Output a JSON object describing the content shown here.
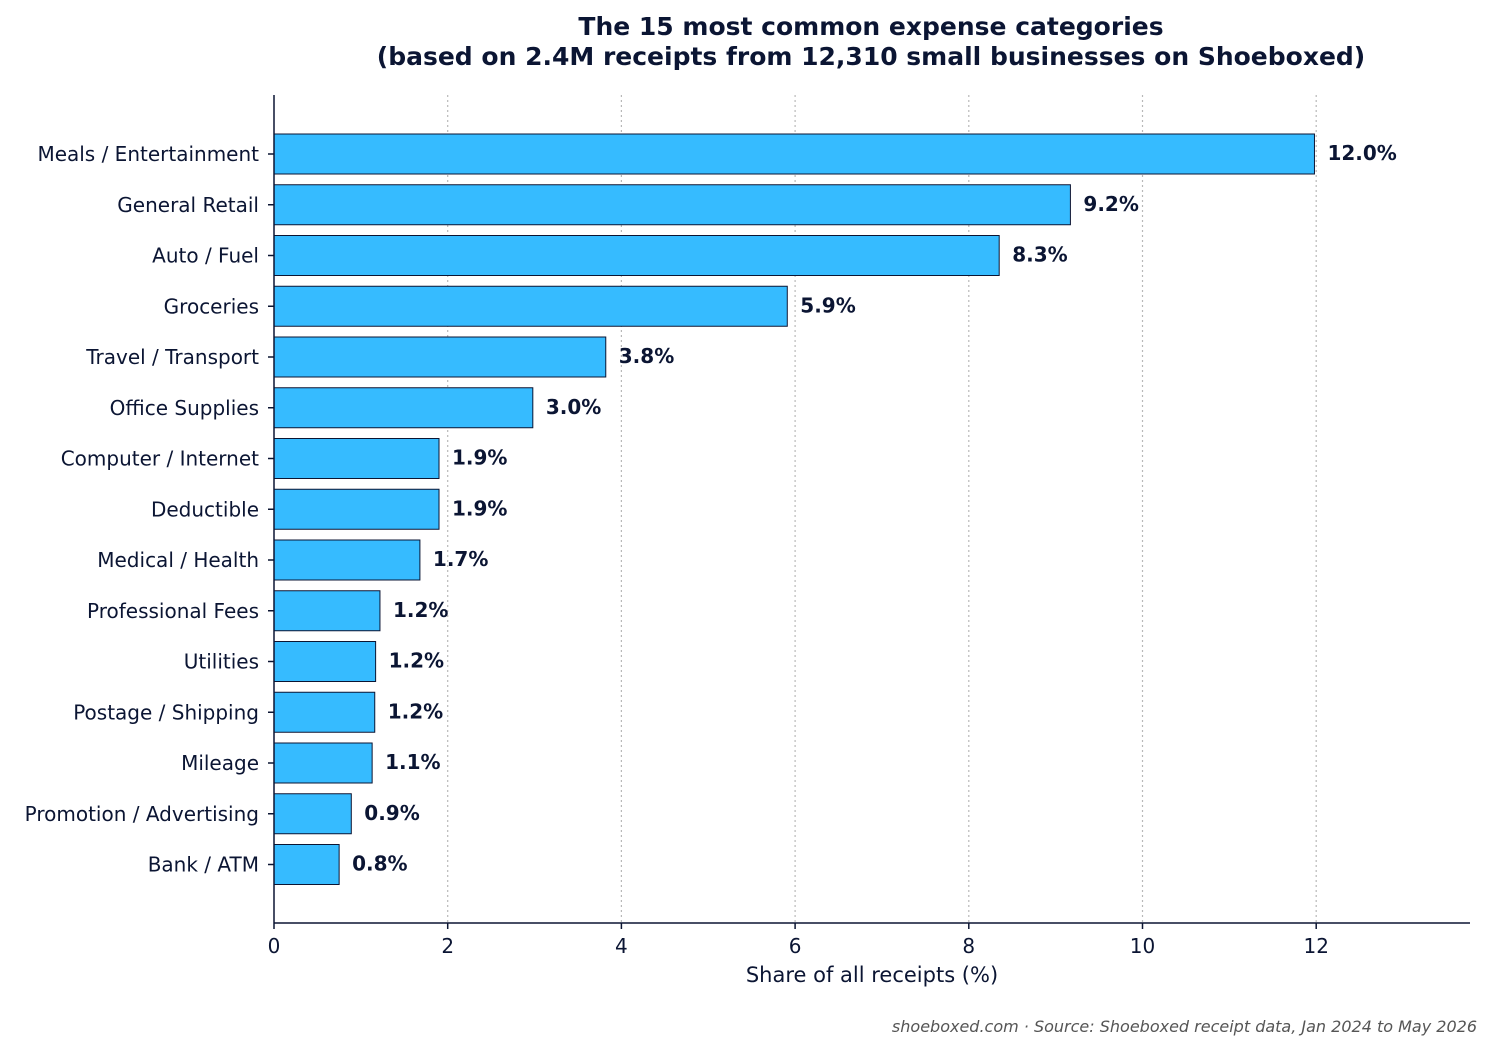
{
  "chart_data": {
    "type": "bar",
    "orientation": "horizontal",
    "title_lines": [
      "The 15 most common expense categories",
      "(based on 2.4M receipts from 12,310 small businesses on Shoeboxed)"
    ],
    "xlabel": "Share of all receipts (%)",
    "ylabel": "",
    "xlim": [
      0,
      13.8
    ],
    "xticks": [
      0,
      2,
      4,
      6,
      8,
      10,
      12
    ],
    "grid": "vertical dotted",
    "bar_color": "#36bbff",
    "categories": [
      "Meals / Entertainment",
      "General Retail",
      "Auto / Fuel",
      "Groceries",
      "Travel / Transport",
      "Office Supplies",
      "Computer / Internet",
      "Deductible",
      "Medical / Health",
      "Professional Fees",
      "Utilities",
      "Postage / Shipping",
      "Mileage",
      "Promotion / Advertising",
      "Bank / ATM"
    ],
    "values": [
      11.98,
      9.17,
      8.35,
      5.91,
      3.82,
      2.98,
      1.9,
      1.9,
      1.68,
      1.22,
      1.17,
      1.16,
      1.13,
      0.89,
      0.75
    ],
    "value_labels": [
      "12.0%",
      "9.2%",
      "8.3%",
      "5.9%",
      "3.8%",
      "3.0%",
      "1.9%",
      "1.9%",
      "1.7%",
      "1.2%",
      "1.2%",
      "1.2%",
      "1.1%",
      "0.9%",
      "0.8%"
    ]
  },
  "footer": "shoeboxed.com  ·  Source: Shoeboxed receipt data, Jan 2024 to May 2026"
}
